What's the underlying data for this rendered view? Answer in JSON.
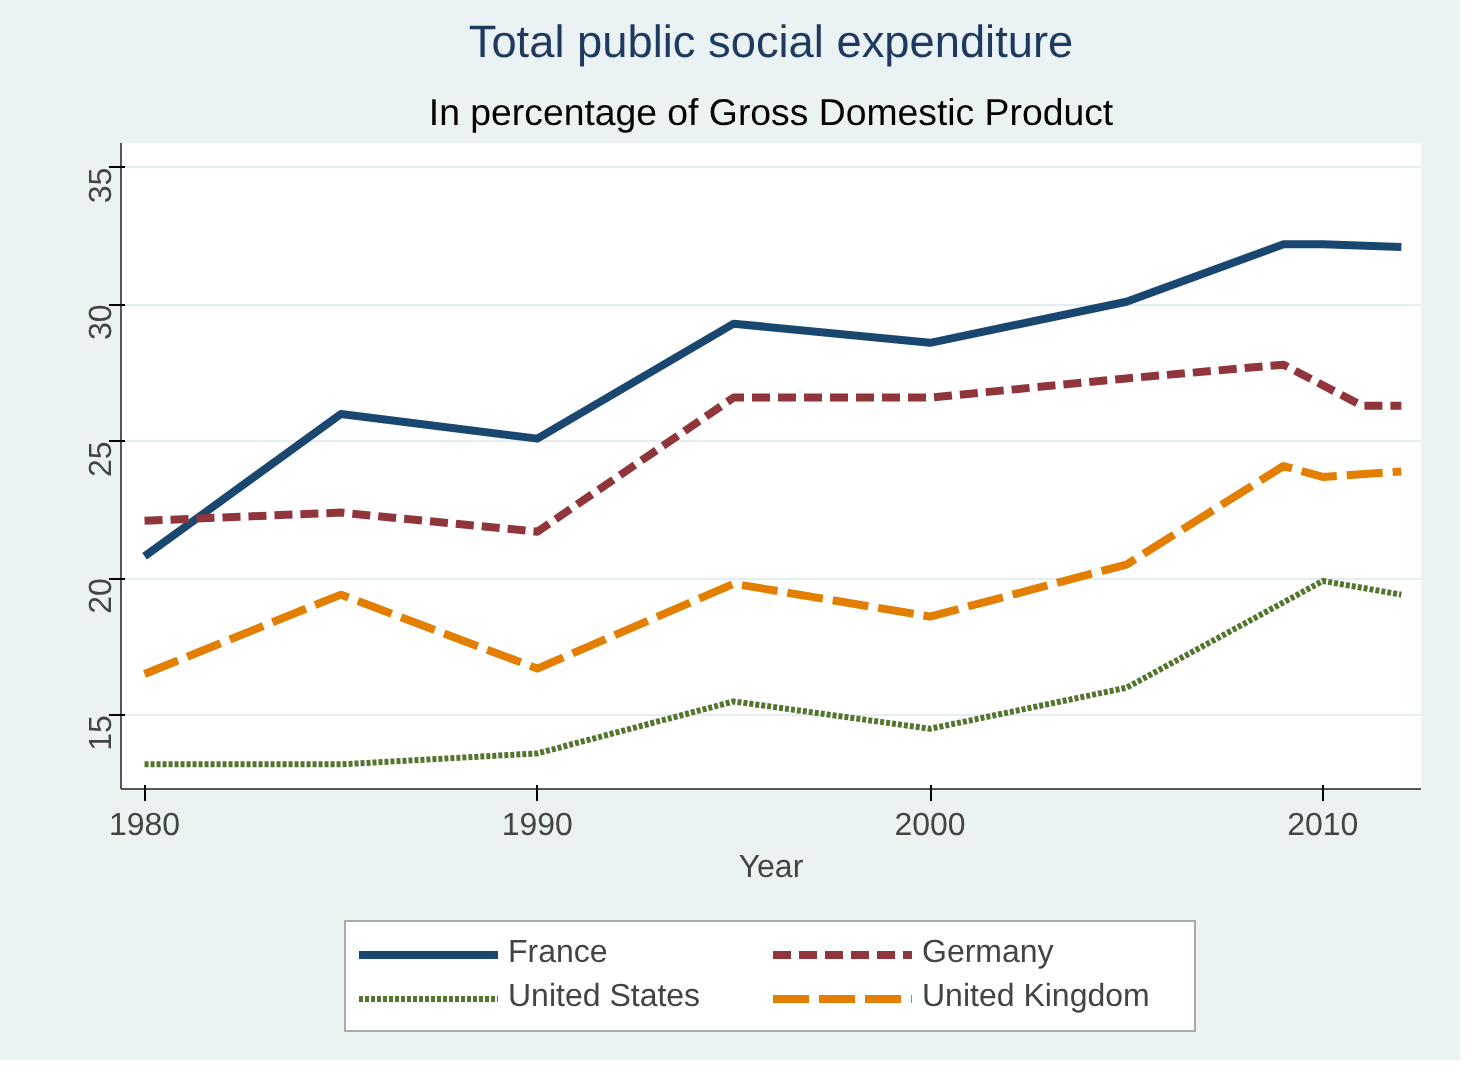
{
  "chart_data": {
    "type": "line",
    "title": "Total public social expenditure",
    "subtitle": "In percentage of Gross Domestic Product",
    "xlabel": "Year",
    "xlim": [
      1979.4,
      2012.5
    ],
    "xticks": [
      1980,
      1990,
      2000,
      2010
    ],
    "ylim": [
      12.3,
      35.9
    ],
    "yticks": [
      15,
      20,
      25,
      30,
      35
    ],
    "grid": "y",
    "legend": "bottom",
    "marker": "none",
    "series": [
      {
        "name": "France",
        "color": "#1a476f",
        "line_style": "solid",
        "x": [
          1980,
          1985,
          1990,
          1995,
          2000,
          2005,
          2009,
          2010,
          2012
        ],
        "values": [
          20.8,
          26.0,
          25.1,
          29.3,
          28.6,
          30.1,
          32.2,
          32.2,
          32.1
        ]
      },
      {
        "name": "Germany",
        "color": "#90353b",
        "line_style": "dashed",
        "x": [
          1980,
          1985,
          1990,
          1995,
          2000,
          2005,
          2009,
          2011,
          2012
        ],
        "values": [
          22.1,
          22.4,
          21.7,
          26.6,
          26.6,
          27.3,
          27.8,
          26.3,
          26.3
        ]
      },
      {
        "name": "United States",
        "color": "#55752f",
        "line_style": "dotted",
        "x": [
          1980,
          1985,
          1990,
          1995,
          2000,
          2005,
          2010,
          2012
        ],
        "values": [
          13.2,
          13.2,
          13.6,
          15.5,
          14.5,
          16.0,
          19.9,
          19.4
        ]
      },
      {
        "name": "United Kingdom",
        "color": "#e37e00",
        "line_style": "dashed",
        "x": [
          1980,
          1985,
          1990,
          1995,
          2000,
          2005,
          2009,
          2010,
          2012
        ],
        "values": [
          16.5,
          19.4,
          16.7,
          19.8,
          18.6,
          20.5,
          24.1,
          23.7,
          23.9
        ]
      }
    ]
  }
}
